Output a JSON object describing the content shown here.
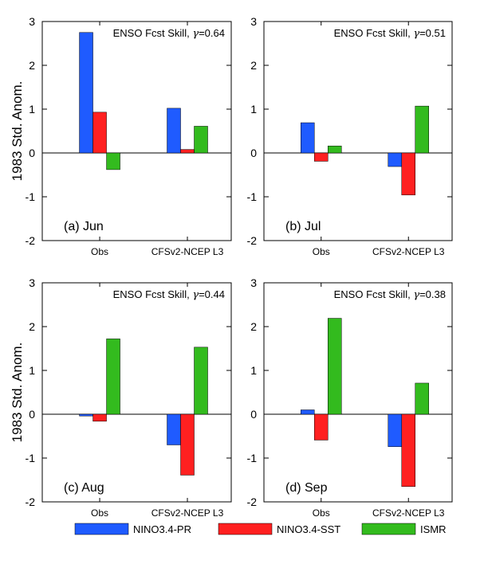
{
  "colors": {
    "nino34_pr": "#1f5bff",
    "nino34_sst": "#ff2020",
    "ismr": "#33bb1e",
    "axis": "#000000"
  },
  "legend": {
    "items": [
      {
        "name": "NINO3.4-PR",
        "color_key": "nino34_pr"
      },
      {
        "name": "NINO3.4-SST",
        "color_key": "nino34_sst"
      },
      {
        "name": "ISMR",
        "color_key": "ismr"
      }
    ]
  },
  "chart_data": [
    {
      "type": "bar",
      "panel_label": "(a) Jun",
      "title": "ENSO Fcst Skill, γ=0.64",
      "ylabel": "1983 Std. Anom.",
      "ylim": [
        -2,
        3
      ],
      "yticks": [
        -2,
        -1,
        0,
        1,
        2,
        3
      ],
      "categories": [
        "Obs",
        "CFSv2-NCEP L3"
      ],
      "series": [
        {
          "name": "NINO3.4-PR",
          "values": [
            2.75,
            1.02
          ]
        },
        {
          "name": "NINO3.4-SST",
          "values": [
            0.93,
            0.08
          ]
        },
        {
          "name": "ISMR",
          "values": [
            -0.38,
            0.61
          ]
        }
      ]
    },
    {
      "type": "bar",
      "panel_label": "(b) Jul",
      "title": "ENSO Fcst Skill, γ=0.51",
      "ylabel": "",
      "ylim": [
        -2,
        3
      ],
      "yticks": [
        -2,
        -1,
        0,
        1,
        2,
        3
      ],
      "categories": [
        "Obs",
        "CFSv2-NCEP L3"
      ],
      "series": [
        {
          "name": "NINO3.4-PR",
          "values": [
            0.69,
            -0.31
          ]
        },
        {
          "name": "NINO3.4-SST",
          "values": [
            -0.19,
            -0.96
          ]
        },
        {
          "name": "ISMR",
          "values": [
            0.16,
            1.07
          ]
        }
      ]
    },
    {
      "type": "bar",
      "panel_label": "(c) Aug",
      "title": "ENSO Fcst Skill, γ=0.44",
      "ylabel": "1983 Std. Anom.",
      "ylim": [
        -2,
        3
      ],
      "yticks": [
        -2,
        -1,
        0,
        1,
        2,
        3
      ],
      "categories": [
        "Obs",
        "CFSv2-NCEP L3"
      ],
      "series": [
        {
          "name": "NINO3.4-PR",
          "values": [
            -0.04,
            -0.7
          ]
        },
        {
          "name": "NINO3.4-SST",
          "values": [
            -0.16,
            -1.39
          ]
        },
        {
          "name": "ISMR",
          "values": [
            1.72,
            1.53
          ]
        }
      ]
    },
    {
      "type": "bar",
      "panel_label": "(d) Sep",
      "title": "ENSO Fcst Skill, γ=0.38",
      "ylabel": "",
      "ylim": [
        -2,
        3
      ],
      "yticks": [
        -2,
        -1,
        0,
        1,
        2,
        3
      ],
      "categories": [
        "Obs",
        "CFSv2-NCEP L3"
      ],
      "series": [
        {
          "name": "NINO3.4-PR",
          "values": [
            0.1,
            -0.74
          ]
        },
        {
          "name": "NINO3.4-SST",
          "values": [
            -0.59,
            -1.65
          ]
        },
        {
          "name": "ISMR",
          "values": [
            2.19,
            0.71
          ]
        }
      ]
    }
  ]
}
